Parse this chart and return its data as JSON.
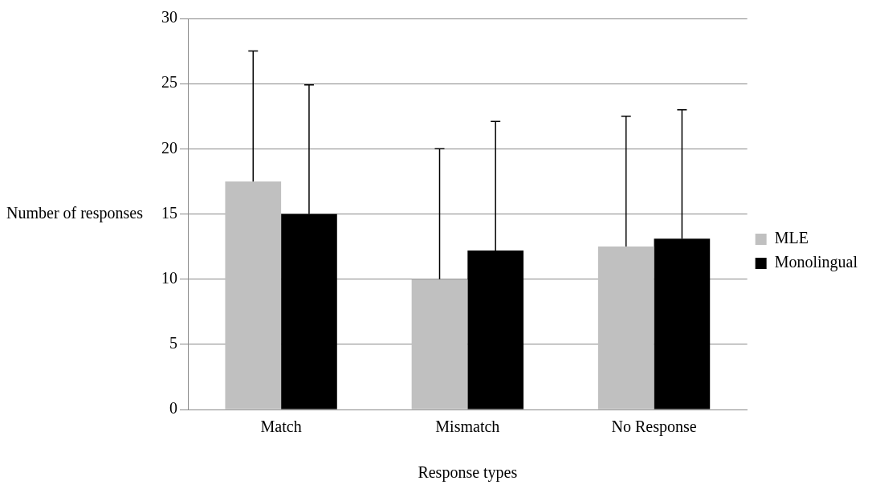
{
  "chart_data": {
    "type": "bar",
    "xlabel": "Response types",
    "ylabel": "Number of responses",
    "categories": [
      "Match",
      "Mismatch",
      "No Response"
    ],
    "series": [
      {
        "name": "MLE",
        "color": "#c0c0c0",
        "values": [
          17.5,
          10,
          12.5
        ],
        "errors": [
          [
            17.5,
            27.5
          ],
          [
            10,
            20
          ],
          [
            12.5,
            22.5
          ]
        ]
      },
      {
        "name": "Monolingual",
        "color": "#000000",
        "values": [
          15,
          12.2,
          13.1
        ],
        "errors": [
          [
            15,
            24.9
          ],
          [
            12.2,
            22.1
          ],
          [
            13.1,
            23
          ]
        ]
      }
    ],
    "ylim": [
      0,
      30
    ],
    "yticks": [
      0,
      5,
      10,
      15,
      20,
      25,
      30
    ],
    "grid": "y",
    "legend": "right"
  }
}
